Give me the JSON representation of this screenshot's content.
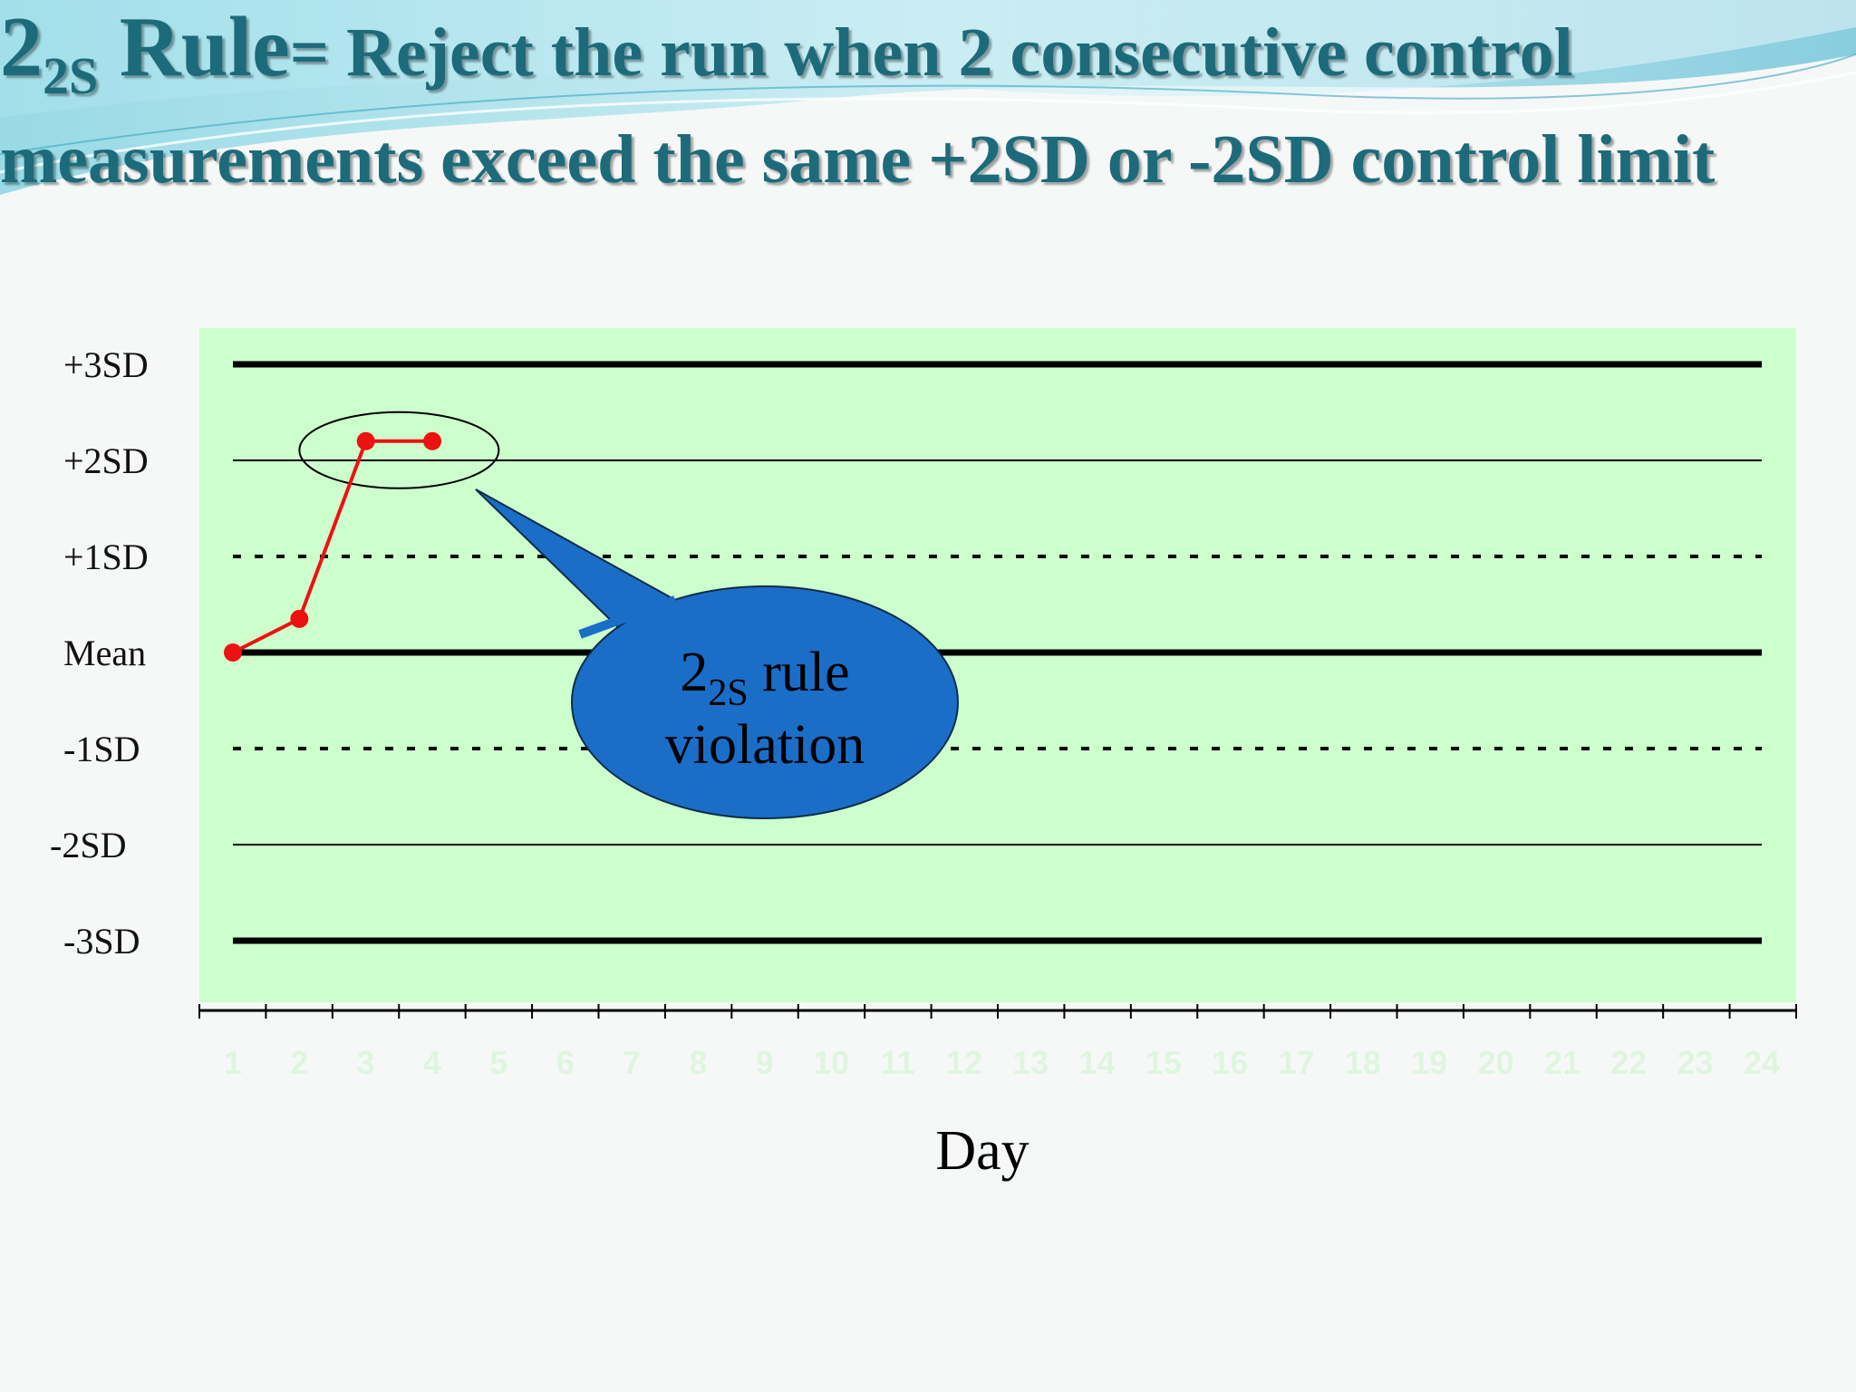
{
  "slide": {
    "title_main": "2",
    "title_sub": "2S",
    "title_word": "Rule",
    "title_desc": "= Reject the run when 2 consecutive control measurements exceed the same +2SD or -2SD control limit"
  },
  "colors": {
    "plot_bg": "#ccffcc",
    "data_line": "#ee1111",
    "callout_fill": "#1a6ec8",
    "title": "#1d6b7a",
    "tick_text": "#dff5df"
  },
  "chart_data": {
    "type": "line",
    "xlabel": "Day",
    "x_ticks": [
      "1",
      "2",
      "3",
      "4",
      "5",
      "6",
      "7",
      "8",
      "9",
      "10",
      "11",
      "12",
      "13",
      "14",
      "15",
      "16",
      "17",
      "18",
      "19",
      "20",
      "21",
      "22",
      "23",
      "24"
    ],
    "xlim": [
      0.5,
      24.5
    ],
    "ylim": [
      -3.5,
      3.5
    ],
    "control_lines": [
      {
        "label": "+3SD",
        "value": 3,
        "style": "thick"
      },
      {
        "label": "+2SD",
        "value": 2,
        "style": "thin"
      },
      {
        "label": "+1SD",
        "value": 1,
        "style": "dotted"
      },
      {
        "label": "Mean",
        "value": 0,
        "style": "thick"
      },
      {
        "label": "-1SD",
        "value": -1,
        "style": "dotted"
      },
      {
        "label": "-2SD",
        "value": -2,
        "style": "thin"
      },
      {
        "label": "-3SD",
        "value": -3,
        "style": "thick"
      }
    ],
    "series": [
      {
        "x": [
          1,
          2,
          3,
          4
        ],
        "values": [
          0,
          0.35,
          2.2,
          2.2
        ]
      }
    ],
    "annotation": {
      "main": "2",
      "sub": "2S",
      "line1_rest": " rule",
      "line2": "violation",
      "points": [
        3,
        4
      ]
    }
  }
}
